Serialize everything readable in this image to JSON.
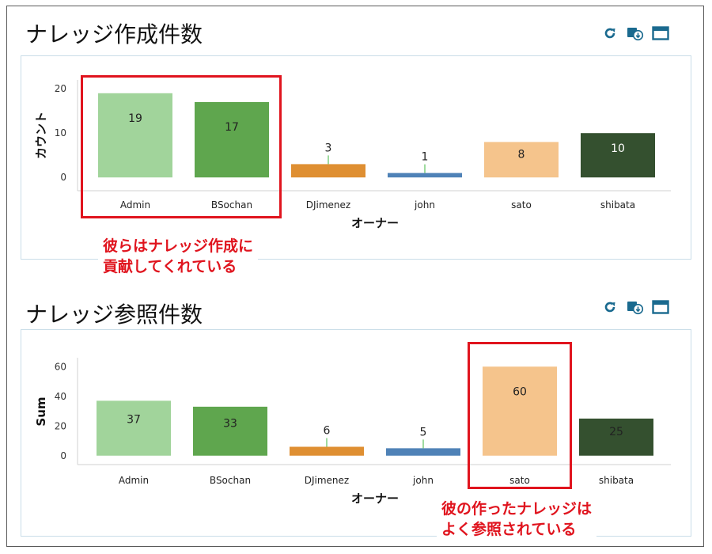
{
  "panels": {
    "creation": {
      "title": "ナレッジ作成件数",
      "annotation_line1": "彼らはナレッジ作成に",
      "annotation_line2": "貢献してくれている"
    },
    "reference": {
      "title": "ナレッジ参照件数",
      "annotation_line1": "彼の作ったナレッジは",
      "annotation_line2": "よく参照されている"
    }
  },
  "toolbar": {
    "icons": [
      "refresh-icon",
      "export-icon",
      "maximize-icon"
    ],
    "icon_color": "#1a6a8f"
  },
  "chart_data": [
    {
      "type": "bar",
      "title": "ナレッジ作成件数",
      "xlabel": "オーナー",
      "ylabel": "カウント",
      "categories": [
        "Admin",
        "BSochan",
        "DJimenez",
        "john",
        "sato",
        "shibata"
      ],
      "values": [
        19,
        17,
        3,
        1,
        8,
        10
      ],
      "colors": [
        "#a1d49b",
        "#5fa64e",
        "#df8f32",
        "#4f82b7",
        "#f5c48c",
        "#34502f"
      ],
      "label_text_colors": [
        "#222222",
        "#222222",
        "#222222",
        "#222222",
        "#222222",
        "#ffffff"
      ],
      "ylim": [
        -3,
        22
      ],
      "yticks": [
        0,
        10,
        20
      ],
      "grid": false,
      "highlighted_categories": [
        "Admin",
        "BSochan"
      ]
    },
    {
      "type": "bar",
      "title": "ナレッジ参照件数",
      "xlabel": "オーナー",
      "ylabel": "Sum",
      "categories": [
        "Admin",
        "BSochan",
        "DJimenez",
        "john",
        "sato",
        "shibata"
      ],
      "values": [
        37,
        33,
        6,
        5,
        60,
        25
      ],
      "colors": [
        "#a1d49b",
        "#5fa64e",
        "#df8f32",
        "#4f82b7",
        "#f5c48c",
        "#34502f"
      ],
      "label_text_colors": [
        "#222222",
        "#222222",
        "#222222",
        "#222222",
        "#222222",
        "#222222"
      ],
      "ylim": [
        -6,
        66
      ],
      "yticks": [
        0,
        20,
        40,
        60
      ],
      "grid": false,
      "highlighted_categories": [
        "sato"
      ]
    }
  ]
}
